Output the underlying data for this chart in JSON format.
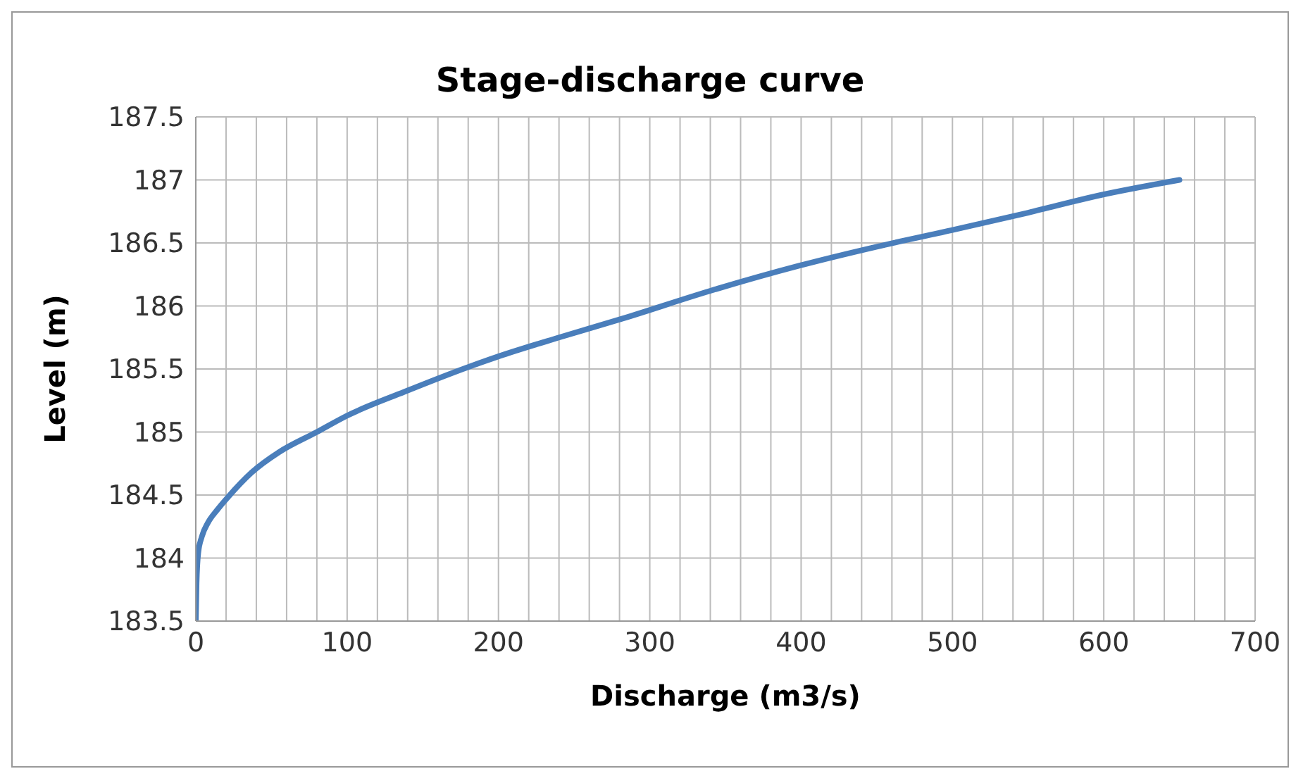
{
  "chart_data": {
    "type": "line",
    "title": "Stage-discharge curve",
    "xlabel": "Discharge (m3/s)",
    "ylabel": "Level (m)",
    "x": [
      0,
      0.5,
      1.6,
      4,
      8,
      14,
      21,
      37,
      55,
      80,
      100,
      138,
      181,
      200,
      240,
      282,
      340,
      399,
      450,
      499,
      550,
      598,
      650
    ],
    "series": [
      {
        "color": "#4a7ebb",
        "values": [
          183.5,
          183.8,
          184.04,
          184.17,
          184.28,
          184.38,
          184.48,
          184.68,
          184.84,
          185.0,
          185.13,
          185.32,
          185.52,
          185.6,
          185.75,
          185.9,
          186.12,
          186.32,
          186.47,
          186.6,
          186.74,
          186.88,
          187.0
        ]
      }
    ],
    "xlim": [
      0,
      700
    ],
    "xticks": [
      0,
      {
        "value": 20,
        "label": null
      },
      {
        "value": 40,
        "label": null
      },
      {
        "value": 60,
        "label": null
      },
      {
        "value": 80,
        "label": null
      },
      100,
      {
        "value": 120,
        "label": null
      },
      {
        "value": 140,
        "label": null
      },
      {
        "value": 160,
        "label": null
      },
      {
        "value": 180,
        "label": null
      },
      200,
      {
        "value": 220,
        "label": null
      },
      {
        "value": 240,
        "label": null
      },
      {
        "value": 260,
        "label": null
      },
      {
        "value": 280,
        "label": null
      },
      300,
      {
        "value": 320,
        "label": null
      },
      {
        "value": 340,
        "label": null
      },
      {
        "value": 360,
        "label": null
      },
      {
        "value": 380,
        "label": null
      },
      400,
      {
        "value": 420,
        "label": null
      },
      {
        "value": 440,
        "label": null
      },
      {
        "value": 460,
        "label": null
      },
      {
        "value": 480,
        "label": null
      },
      500,
      {
        "value": 520,
        "label": null
      },
      {
        "value": 540,
        "label": null
      },
      {
        "value": 560,
        "label": null
      },
      {
        "value": 580,
        "label": null
      },
      600,
      {
        "value": 620,
        "label": null
      },
      {
        "value": 640,
        "label": null
      },
      {
        "value": 660,
        "label": null
      },
      {
        "value": 680,
        "label": null
      },
      700
    ],
    "ylim": [
      183.5,
      187.5
    ],
    "yticks": [
      183.5,
      184,
      184.5,
      185,
      185.5,
      186,
      186.5,
      187,
      187.5
    ],
    "grid": true,
    "legend": false,
    "marker": "none",
    "line_style": "solid"
  }
}
